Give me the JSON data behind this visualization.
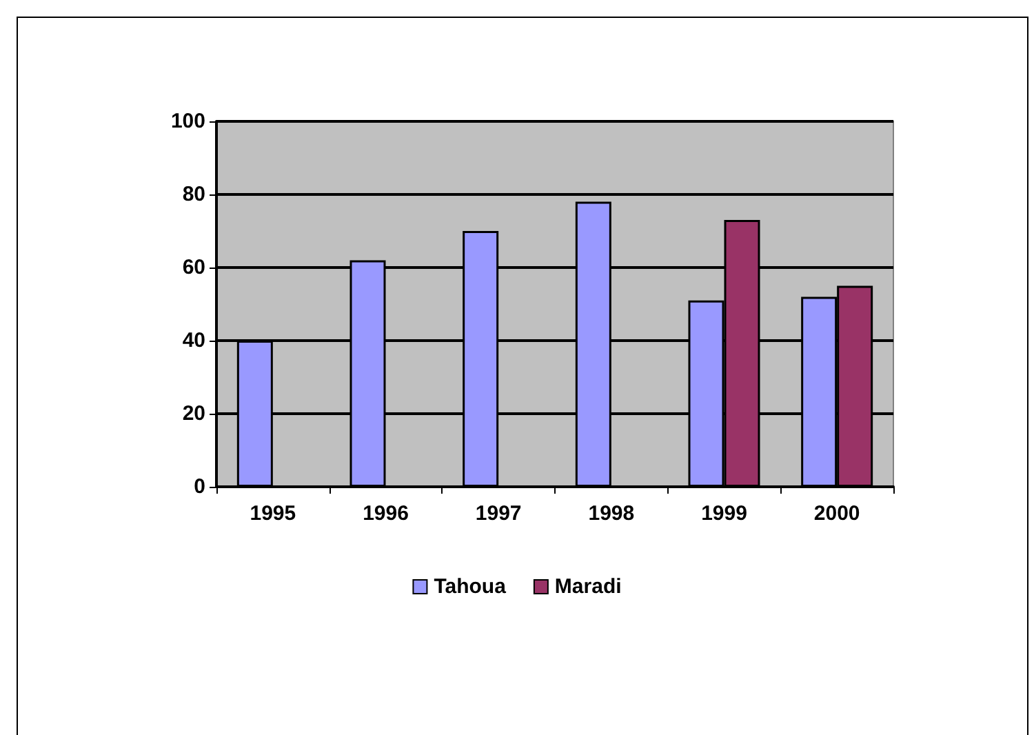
{
  "chart_data": {
    "type": "bar",
    "categories": [
      "1995",
      "1996",
      "1997",
      "1998",
      "1999",
      "2000"
    ],
    "series": [
      {
        "name": "Tahoua",
        "color": "#9999ff",
        "values": [
          40,
          62,
          70,
          78,
          51,
          52
        ]
      },
      {
        "name": "Maradi",
        "color": "#993366",
        "values": [
          null,
          null,
          null,
          null,
          73,
          55
        ]
      }
    ],
    "ylim": [
      0,
      100
    ],
    "yticks": [
      0,
      20,
      40,
      60,
      80,
      100
    ],
    "grid": "y",
    "legend": "bottom"
  }
}
